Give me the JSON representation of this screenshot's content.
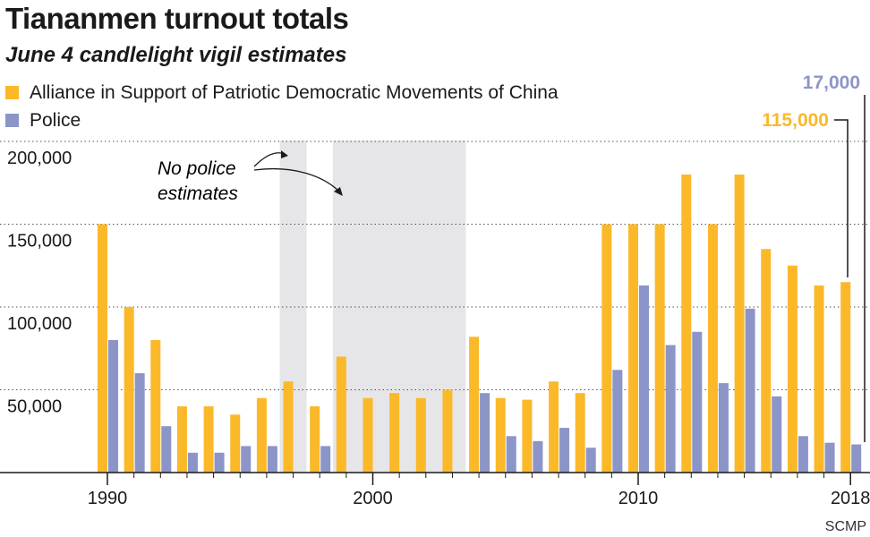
{
  "title": "Tiananmen turnout totals",
  "subtitle": "June 4 candlelight vigil estimates",
  "source": "SCMP",
  "colors": {
    "alliance": "#fbb829",
    "police": "#8c95c8",
    "shade": "#e6e6e8",
    "grid": "#555555"
  },
  "annotation": {
    "line1": "No police",
    "line2": "estimates"
  },
  "callouts": {
    "alliance_2018": "115,000",
    "police_2018": "17,000"
  },
  "chart_data": {
    "type": "bar",
    "title": "Tiananmen turnout totals",
    "subtitle": "June 4 candlelight vigil estimates",
    "xlabel": "",
    "ylabel": "",
    "ylim": [
      0,
      200000
    ],
    "yticks": [
      "50,000",
      "100,000",
      "150,000",
      "200,000"
    ],
    "ytick_values": [
      50000,
      100000,
      150000,
      200000
    ],
    "xticks": [
      "1990",
      "2000",
      "2010",
      "2018"
    ],
    "xtick_values": [
      1990,
      2000,
      2010,
      2018
    ],
    "legend_position": "top-left",
    "grid": true,
    "categories": [
      1990,
      1991,
      1992,
      1993,
      1994,
      1995,
      1996,
      1997,
      1998,
      1999,
      2000,
      2001,
      2002,
      2003,
      2004,
      2005,
      2006,
      2007,
      2008,
      2009,
      2010,
      2011,
      2012,
      2013,
      2014,
      2015,
      2016,
      2017,
      2018
    ],
    "series": [
      {
        "name": "Alliance in Support of Patriotic Democratic Movements of China",
        "values": [
          150000,
          100000,
          80000,
          40000,
          40000,
          35000,
          45000,
          55000,
          40000,
          70000,
          45000,
          48000,
          45000,
          50000,
          82000,
          45000,
          44000,
          55000,
          48000,
          150000,
          150000,
          150000,
          180000,
          150000,
          180000,
          135000,
          125000,
          113000,
          115000
        ]
      },
      {
        "name": "Police",
        "values": [
          80000,
          60000,
          28000,
          12000,
          12000,
          16000,
          16000,
          null,
          16000,
          null,
          null,
          null,
          null,
          null,
          48000,
          22000,
          19000,
          27000,
          15000,
          62000,
          113000,
          77000,
          85000,
          54000,
          99000,
          46000,
          22000,
          18000,
          17000
        ]
      }
    ],
    "no_police_estimate_ranges": [
      [
        1997,
        1997
      ],
      [
        1999,
        2003
      ]
    ],
    "annotations": [
      "No police estimates",
      "115,000",
      "17,000"
    ]
  }
}
